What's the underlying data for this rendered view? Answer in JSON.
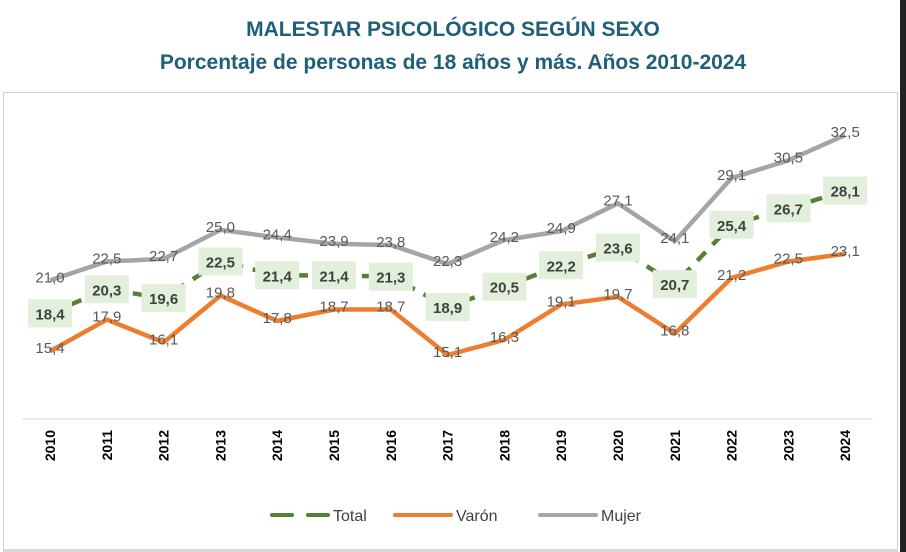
{
  "chart_data": {
    "type": "line",
    "title": "MALESTAR PSICOLÓGICO SEGÚN SEXO",
    "subtitle": "Porcentaje de personas de 18 años y más. Años 2010-2024",
    "categories": [
      "2010",
      "2011",
      "2012",
      "2013",
      "2014",
      "2015",
      "2016",
      "2017",
      "2018",
      "2019",
      "2020",
      "2021",
      "2022",
      "2023",
      "2024"
    ],
    "ylim": [
      10,
      35.5
    ],
    "grid": false,
    "legend_position": "bottom",
    "series": [
      {
        "name": "Total",
        "color": "#548235",
        "style": "dashed",
        "values": [
          18.4,
          20.3,
          19.6,
          22.5,
          21.4,
          21.4,
          21.3,
          18.9,
          20.5,
          22.2,
          23.6,
          20.7,
          25.4,
          26.7,
          28.1
        ],
        "label_box": "#e2efda"
      },
      {
        "name": "Varón",
        "color": "#ed7d31",
        "style": "solid",
        "values": [
          15.4,
          17.9,
          16.1,
          19.8,
          17.8,
          18.7,
          18.7,
          15.1,
          16.3,
          19.1,
          19.7,
          16.8,
          21.2,
          22.5,
          23.1
        ]
      },
      {
        "name": "Mujer",
        "color": "#a5a5a5",
        "style": "solid",
        "values": [
          21.0,
          22.5,
          22.7,
          25.0,
          24.4,
          23.9,
          23.8,
          22.3,
          24.2,
          24.9,
          27.1,
          24.1,
          29.1,
          30.5,
          32.5
        ]
      }
    ]
  }
}
